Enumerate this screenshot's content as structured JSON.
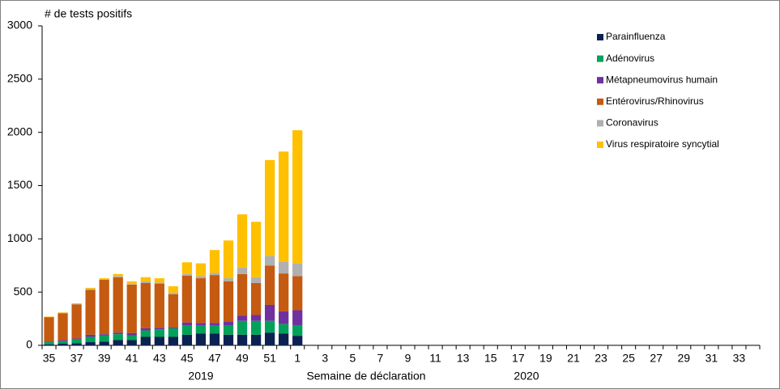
{
  "chart_data": {
    "type": "stacked_bar",
    "y_label": "# de tests positifs",
    "x_label": "Semaine de déclaration",
    "year_labels": [
      "2019",
      "2020"
    ],
    "categories": [
      "35",
      null,
      "37",
      null,
      "39",
      null,
      "41",
      null,
      "43",
      null,
      "45",
      null,
      "47",
      null,
      "49",
      null,
      "51",
      null,
      "1",
      null,
      "3",
      null,
      "5",
      null,
      "7",
      null,
      "9",
      null,
      "11",
      null,
      "13",
      null,
      "15",
      null,
      "17",
      null,
      "19",
      null,
      "21",
      null,
      "23",
      null,
      "25",
      null,
      "27",
      null,
      "29",
      null,
      "31",
      null,
      "33",
      null
    ],
    "ylim": [
      0,
      3000
    ],
    "yticks": [
      0,
      500,
      1000,
      1500,
      2000,
      2500,
      3000
    ],
    "legend": "top-right",
    "series": [
      {
        "name": "Parainfluenza",
        "color": "#0b2151",
        "values": [
          10,
          15,
          20,
          30,
          35,
          50,
          50,
          80,
          80,
          80,
          100,
          110,
          110,
          100,
          100,
          100,
          120,
          110,
          90,
          null,
          null,
          null,
          null,
          null,
          null,
          null,
          null,
          null,
          null,
          null,
          null,
          null,
          null,
          null,
          null,
          null,
          null,
          null,
          null,
          null,
          null,
          null,
          null,
          null,
          null,
          null,
          null,
          null,
          null,
          null,
          null,
          null
        ]
      },
      {
        "name": "Adénovirus",
        "color": "#00a25a",
        "values": [
          20,
          25,
          35,
          50,
          60,
          55,
          45,
          60,
          70,
          80,
          90,
          80,
          80,
          90,
          130,
          130,
          110,
          90,
          100,
          null,
          null,
          null,
          null,
          null,
          null,
          null,
          null,
          null,
          null,
          null,
          null,
          null,
          null,
          null,
          null,
          null,
          null,
          null,
          null,
          null,
          null,
          null,
          null,
          null,
          null,
          null,
          null,
          null,
          null,
          null,
          null,
          null
        ]
      },
      {
        "name": "Métapneumovirus humain",
        "color": "#7030a0",
        "values": [
          5,
          10,
          10,
          20,
          10,
          15,
          20,
          20,
          15,
          10,
          25,
          20,
          20,
          30,
          50,
          55,
          150,
          120,
          140,
          null,
          null,
          null,
          null,
          null,
          null,
          null,
          null,
          null,
          null,
          null,
          null,
          null,
          null,
          null,
          null,
          null,
          null,
          null,
          null,
          null,
          null,
          null,
          null,
          null,
          null,
          null,
          null,
          null,
          null,
          null,
          null,
          null
        ]
      },
      {
        "name": "Entérovirus/Rhinovirus",
        "color": "#c55a11",
        "values": [
          230,
          250,
          320,
          420,
          510,
          520,
          455,
          425,
          415,
          310,
          440,
          420,
          450,
          380,
          390,
          300,
          370,
          355,
          320,
          null,
          null,
          null,
          null,
          null,
          null,
          null,
          null,
          null,
          null,
          null,
          null,
          null,
          null,
          null,
          null,
          null,
          null,
          null,
          null,
          null,
          null,
          null,
          null,
          null,
          null,
          null,
          null,
          null,
          null,
          null,
          null,
          null
        ]
      },
      {
        "name": "Coronavirus",
        "color": "#b0b0b0",
        "values": [
          0,
          5,
          5,
          10,
          5,
          10,
          5,
          15,
          10,
          15,
          15,
          20,
          20,
          30,
          60,
          55,
          90,
          110,
          120,
          null,
          null,
          null,
          null,
          null,
          null,
          null,
          null,
          null,
          null,
          null,
          null,
          null,
          null,
          null,
          null,
          null,
          null,
          null,
          null,
          null,
          null,
          null,
          null,
          null,
          null,
          null,
          null,
          null,
          null,
          null,
          null,
          null
        ]
      },
      {
        "name": "Virus respiratoire syncytial",
        "color": "#ffc000",
        "values": [
          5,
          5,
          5,
          10,
          10,
          20,
          25,
          40,
          40,
          60,
          110,
          120,
          215,
          355,
          500,
          520,
          900,
          1035,
          1250,
          null,
          null,
          null,
          null,
          null,
          null,
          null,
          null,
          null,
          null,
          null,
          null,
          null,
          null,
          null,
          null,
          null,
          null,
          null,
          null,
          null,
          null,
          null,
          null,
          null,
          null,
          null,
          null,
          null,
          null,
          null,
          null,
          null
        ]
      }
    ]
  }
}
